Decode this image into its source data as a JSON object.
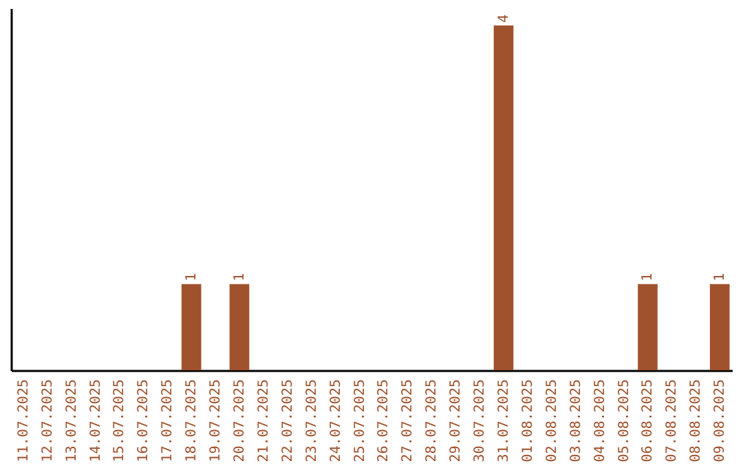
{
  "chart_data": {
    "type": "bar",
    "categories": [
      "11.07.2025",
      "12.07.2025",
      "13.07.2025",
      "14.07.2025",
      "15.07.2025",
      "16.07.2025",
      "17.07.2025",
      "18.07.2025",
      "19.07.2025",
      "20.07.2025",
      "21.07.2025",
      "22.07.2025",
      "23.07.2025",
      "24.07.2025",
      "25.07.2025",
      "26.07.2025",
      "27.07.2025",
      "28.07.2025",
      "29.07.2025",
      "30.07.2025",
      "31.07.2025",
      "01.08.2025",
      "02.08.2025",
      "03.08.2025",
      "04.08.2025",
      "05.08.2025",
      "06.08.2025",
      "07.08.2025",
      "08.08.2025",
      "09.08.2025"
    ],
    "values": [
      0,
      0,
      0,
      0,
      0,
      0,
      0,
      1,
      0,
      1,
      0,
      0,
      0,
      0,
      0,
      0,
      0,
      0,
      0,
      0,
      4,
      0,
      0,
      0,
      0,
      0,
      1,
      0,
      0,
      1
    ],
    "value_labels": [
      null,
      null,
      null,
      null,
      null,
      null,
      null,
      "1",
      null,
      "1",
      null,
      null,
      null,
      null,
      null,
      null,
      null,
      null,
      null,
      null,
      "4",
      null,
      null,
      null,
      null,
      null,
      "1",
      null,
      null,
      "1"
    ],
    "color": "#a0522d",
    "tick_labels": "x"
  }
}
